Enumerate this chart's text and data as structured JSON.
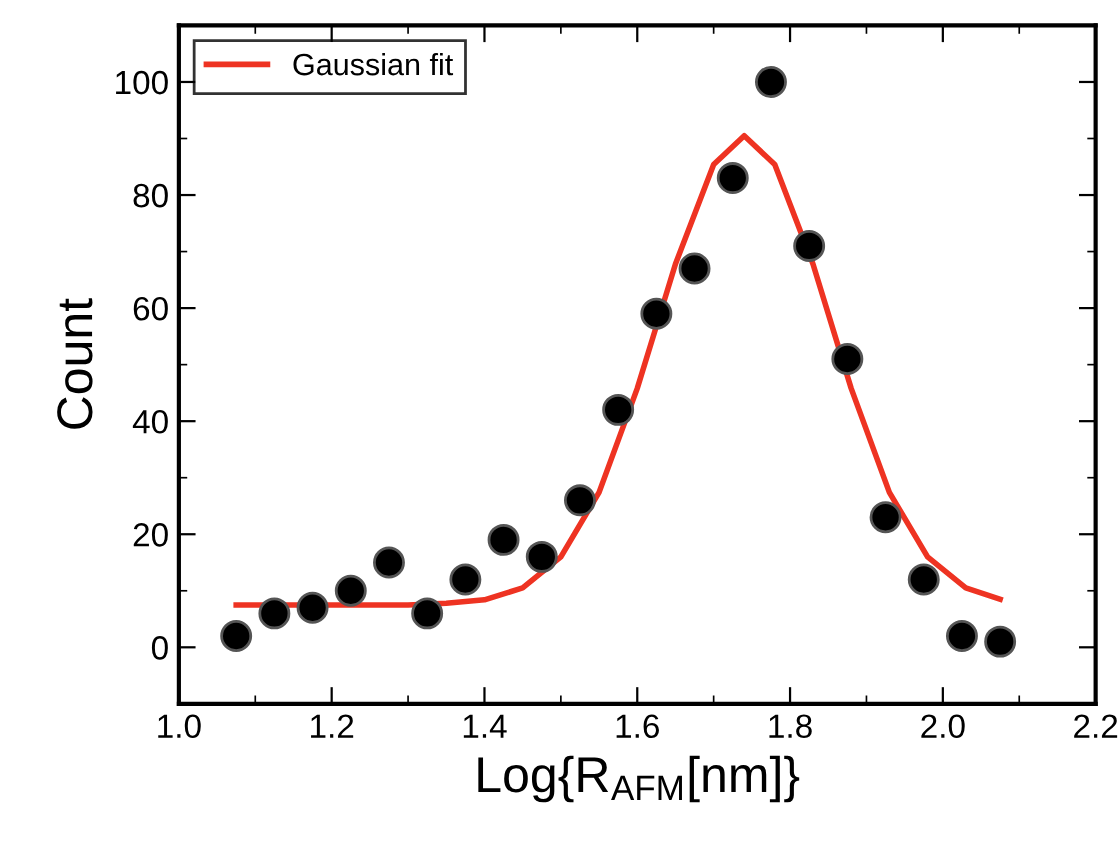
{
  "chart_data": {
    "type": "scatter",
    "xlabel": "Log{R$_{AFM}$[nm]}",
    "ylabel": "Count",
    "xlim": [
      1.0,
      2.2
    ],
    "ylim": [
      -10,
      110
    ],
    "xticks": [
      {
        "value": 1.0,
        "label": "1.0"
      },
      1.2,
      1.4,
      1.6,
      1.8,
      {
        "value": 2.0,
        "label": "2.0"
      },
      2.2
    ],
    "yticks": [
      0,
      20,
      40,
      60,
      80,
      100
    ],
    "legend": "top left",
    "grid": false,
    "marker": "circle",
    "series": [
      {
        "color": "#000000",
        "x": [
          1.075,
          1.125,
          1.175,
          1.225,
          1.275,
          1.325,
          1.375,
          1.425,
          1.475,
          1.525,
          1.575,
          1.625,
          1.675,
          1.725,
          1.775,
          1.825,
          1.875,
          1.925,
          1.975,
          2.025,
          2.075
        ],
        "values": [
          2,
          6,
          7,
          10,
          15,
          6,
          12,
          19,
          16,
          26,
          42,
          59,
          67,
          83,
          100,
          71,
          51,
          23,
          12,
          2,
          1
        ]
      },
      {
        "type": "line",
        "name": "Gaussian fit",
        "color": "#ee3322",
        "marker": "none",
        "x": [
          1.075,
          1.2,
          1.3,
          1.35,
          1.4,
          1.45,
          1.5,
          1.55,
          1.6,
          1.625,
          1.65,
          1.7,
          1.74,
          1.78,
          1.83,
          1.88,
          1.93,
          1.98,
          2.03,
          2.075
        ],
        "values": [
          7.5,
          7.5,
          7.5,
          7.8,
          8.4,
          10.5,
          16,
          27.4,
          45.8,
          56.8,
          67.8,
          85.4,
          90.5,
          85.4,
          67.8,
          45.8,
          27.4,
          16,
          10.5,
          8.5
        ]
      }
    ]
  }
}
